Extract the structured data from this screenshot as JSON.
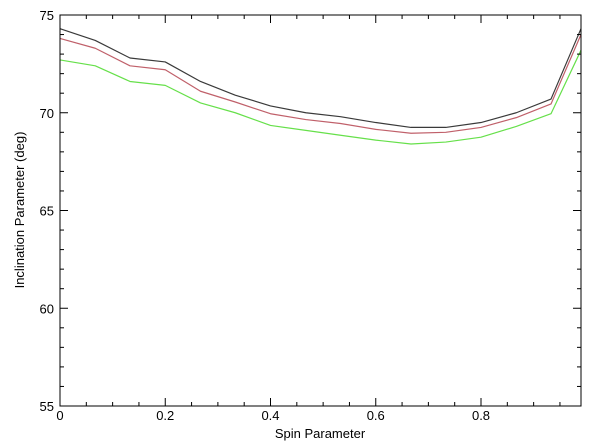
{
  "chart_data": {
    "type": "line",
    "title": "",
    "xlabel": "Spin Parameter",
    "ylabel": "Inclination Parameter (deg)",
    "xlim": [
      0,
      0.99
    ],
    "ylim": [
      55,
      75
    ],
    "x_ticks": [
      0,
      0.2,
      0.4,
      0.6,
      0.8
    ],
    "x_tick_labels": [
      "0",
      "0.2",
      "0.4",
      "0.6",
      "0.8"
    ],
    "y_ticks": [
      55,
      60,
      65,
      70,
      75
    ],
    "y_tick_labels": [
      "55",
      "60",
      "65",
      "70",
      "75"
    ],
    "grid": false,
    "legend": "none",
    "x": [
      0,
      0.067,
      0.133,
      0.2,
      0.267,
      0.333,
      0.4,
      0.467,
      0.533,
      0.6,
      0.667,
      0.733,
      0.8,
      0.867,
      0.933,
      0.99
    ],
    "series": [
      {
        "color": "#3a3a3a",
        "values": [
          74.3,
          73.7,
          72.8,
          72.6,
          71.6,
          70.9,
          70.35,
          70.0,
          69.8,
          69.5,
          69.25,
          69.25,
          69.5,
          70.0,
          70.7,
          74.3
        ]
      },
      {
        "color": "#c0606a",
        "values": [
          73.8,
          73.3,
          72.4,
          72.2,
          71.1,
          70.55,
          69.95,
          69.65,
          69.45,
          69.15,
          68.95,
          69.0,
          69.25,
          69.75,
          70.45,
          74.0
        ]
      },
      {
        "color": "#66e04a",
        "values": [
          72.7,
          72.4,
          71.6,
          71.4,
          70.5,
          70.0,
          69.35,
          69.1,
          68.85,
          68.6,
          68.4,
          68.5,
          68.75,
          69.3,
          69.95,
          73.2
        ]
      }
    ]
  }
}
